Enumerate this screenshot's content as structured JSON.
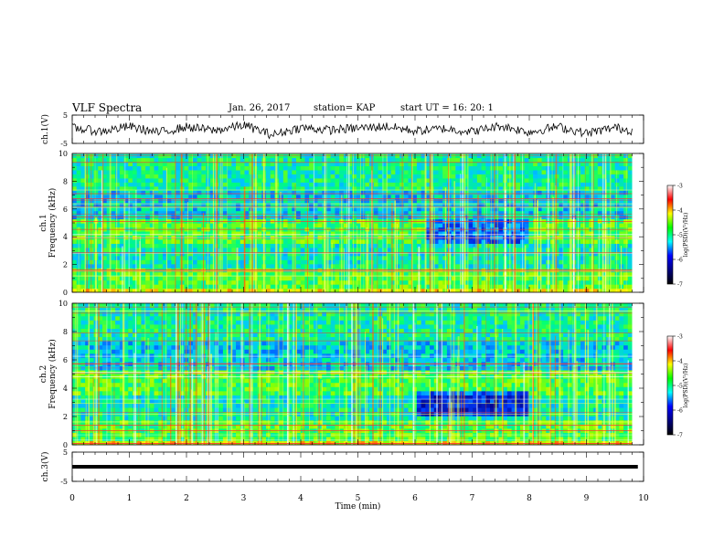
{
  "header": {
    "title": "VLF Spectra",
    "date": "Jan. 26, 2017",
    "station": "station= KAP",
    "start": "start  UT  =   16: 20: 1"
  },
  "colorbar": {
    "label": "log(PSD)(V²/Hz)",
    "ticks": [
      "-3",
      "-4",
      "-5",
      "-6",
      "-7"
    ],
    "colors": [
      "#ffffff",
      "#ff0000",
      "#ffff00",
      "#00ff00",
      "#00ffff",
      "#0000ff",
      "#000080",
      "#000000"
    ]
  },
  "chart_data": [
    {
      "type": "line",
      "name": "ch1-waveform",
      "ylabel": "ch.1(V)",
      "yticks": [
        "5",
        "-5"
      ],
      "ylim": [
        -5,
        5
      ],
      "xlim": [
        0,
        10
      ],
      "x": [
        0.0,
        0.5,
        1.0,
        1.5,
        2.0,
        2.5,
        3.0,
        3.5,
        4.0,
        4.5,
        5.0,
        5.5,
        6.0,
        6.5,
        7.0,
        7.5,
        8.0,
        8.5,
        9.0,
        9.5,
        9.8
      ],
      "values": [
        0.5,
        -0.8,
        1.0,
        -1.2,
        0.8,
        -0.5,
        1.5,
        -2.0,
        0.6,
        -0.3,
        0.4,
        1.0,
        -0.6,
        0.2,
        -0.8,
        1.2,
        -1.0,
        0.9,
        -1.4,
        0.6,
        -0.5
      ]
    },
    {
      "type": "heatmap",
      "name": "ch1-spectrogram",
      "ylabel": "ch.1\nFrequency (kHz)",
      "ylabel_lines": [
        "ch.1",
        "Frequency (kHz)"
      ],
      "yticks": [
        "0",
        "2",
        "4",
        "6",
        "8",
        "10"
      ],
      "ylim": [
        0,
        10
      ],
      "xlim": [
        0,
        9.8
      ],
      "note_bands": [
        {
          "freq_range": [
            3.5,
            5.3
          ],
          "level": "low",
          "time_range": [
            6.2,
            8.0
          ]
        }
      ]
    },
    {
      "type": "heatmap",
      "name": "ch2-spectrogram",
      "ylabel": "ch.2\nFrequency (kHz)",
      "ylabel_lines": [
        "ch.2",
        "Frequency (kHz)"
      ],
      "yticks": [
        "0",
        "2",
        "4",
        "6",
        "8",
        "10"
      ],
      "ylim": [
        0,
        10
      ],
      "xlim": [
        0,
        9.8
      ],
      "note_bands": [
        {
          "freq_range": [
            2.0,
            3.8
          ],
          "level": "low",
          "time_range": [
            6.0,
            8.0
          ]
        }
      ]
    },
    {
      "type": "line",
      "name": "ch3-waveform",
      "ylabel": "ch.3(V)",
      "yticks": [
        "5",
        "-5"
      ],
      "ylim": [
        -5,
        5
      ],
      "xlim": [
        0,
        10
      ],
      "x": [
        0,
        9.9
      ],
      "values": [
        0.0,
        0.0
      ]
    }
  ],
  "xaxis": {
    "label": "Time (min)",
    "ticks": [
      "0",
      "1",
      "2",
      "3",
      "4",
      "5",
      "6",
      "7",
      "8",
      "9",
      "10"
    ],
    "range": [
      0,
      10
    ]
  }
}
